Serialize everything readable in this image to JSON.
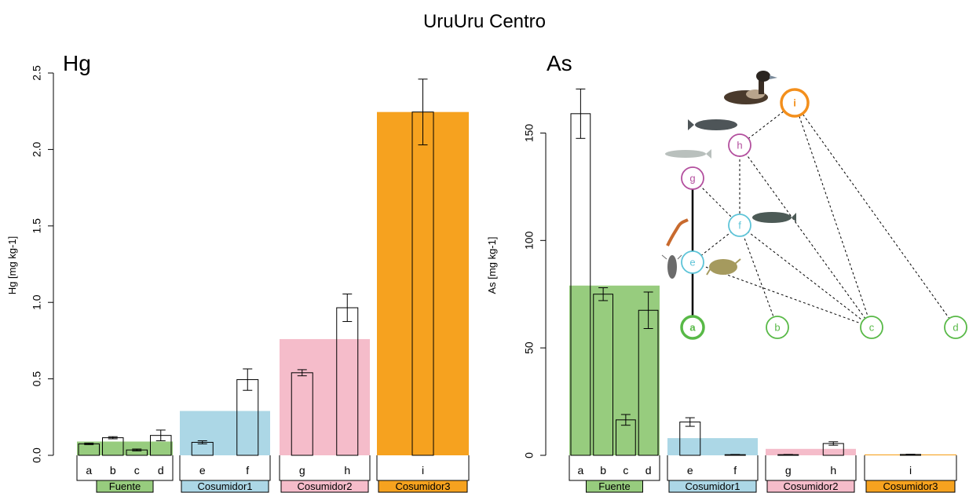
{
  "title": "UruUru Centro",
  "colors": {
    "Fuente": "#97cc7e",
    "Cosumidor1": "#acd7e6",
    "Cosumidor2": "#f5bcca",
    "Cosumidor3": "#f6a21f",
    "a": "#58b947",
    "b": "#58b947",
    "c": "#58b947",
    "d": "#58b947",
    "e": "#5ec4d8",
    "f": "#5ec4d8",
    "g": "#b34f9e",
    "h": "#b34f9e",
    "i": "#f38f1c"
  },
  "chart_data": [
    {
      "type": "bar",
      "panel_label": "Hg",
      "ylabel": "Hg [mg kg-1]",
      "ylim": [
        0,
        2.5
      ],
      "yticks": [
        0.0,
        0.5,
        1.0,
        1.5,
        2.0,
        2.5
      ],
      "tick_labels": [
        "0.0",
        "0.5",
        "1.0",
        "1.5",
        "2.0",
        "2.5"
      ],
      "groups": [
        {
          "name": "Fuente",
          "mean": 0.09,
          "items": [
            {
              "label": "a",
              "value": 0.075,
              "err": 0.005
            },
            {
              "label": "b",
              "value": 0.115,
              "err": 0.007
            },
            {
              "label": "c",
              "value": 0.035,
              "err": 0.006
            },
            {
              "label": "d",
              "value": 0.13,
              "err": 0.035
            }
          ]
        },
        {
          "name": "Cosumidor1",
          "mean": 0.29,
          "items": [
            {
              "label": "e",
              "value": 0.085,
              "err": 0.01
            },
            {
              "label": "f",
              "value": 0.495,
              "err": 0.07
            }
          ]
        },
        {
          "name": "Cosumidor2",
          "mean": 0.76,
          "items": [
            {
              "label": "g",
              "value": 0.54,
              "err": 0.02
            },
            {
              "label": "h",
              "value": 0.965,
              "err": 0.09
            }
          ]
        },
        {
          "name": "Cosumidor3",
          "mean": 2.245,
          "items": [
            {
              "label": "i",
              "value": 2.245,
              "err": 0.215
            }
          ]
        }
      ]
    },
    {
      "type": "bar",
      "panel_label": "As",
      "ylabel": "As [mg kg-1]",
      "ylim": [
        0,
        175
      ],
      "yticks": [
        0,
        50,
        100,
        150
      ],
      "tick_labels": [
        "0",
        "50",
        "100",
        "150"
      ],
      "groups": [
        {
          "name": "Fuente",
          "mean": 79,
          "items": [
            {
              "label": "a",
              "value": 159,
              "err": 11.5
            },
            {
              "label": "b",
              "value": 75,
              "err": 3
            },
            {
              "label": "c",
              "value": 16.5,
              "err": 2.5
            },
            {
              "label": "d",
              "value": 67.5,
              "err": 8.5
            }
          ]
        },
        {
          "name": "Cosumidor1",
          "mean": 8,
          "items": [
            {
              "label": "e",
              "value": 15.5,
              "err": 2
            },
            {
              "label": "f",
              "value": 0.3,
              "err": 0.1
            }
          ]
        },
        {
          "name": "Cosumidor2",
          "mean": 3,
          "items": [
            {
              "label": "g",
              "value": 0.3,
              "err": 0.1
            },
            {
              "label": "h",
              "value": 5.5,
              "err": 0.8
            }
          ]
        },
        {
          "name": "Cosumidor3",
          "mean": 0.4,
          "items": [
            {
              "label": "i",
              "value": 0.4,
              "err": 0.1
            }
          ]
        }
      ]
    }
  ],
  "food_web": {
    "nodes": [
      "a",
      "b",
      "c",
      "d",
      "e",
      "f",
      "g",
      "h",
      "i"
    ],
    "solid_links": [
      [
        "a",
        "e"
      ],
      [
        "e",
        "g"
      ]
    ],
    "dashed_links": [
      [
        "i",
        "h"
      ],
      [
        "i",
        "c"
      ],
      [
        "i",
        "d"
      ],
      [
        "h",
        "f"
      ],
      [
        "h",
        "c"
      ],
      [
        "g",
        "f"
      ],
      [
        "f",
        "e"
      ],
      [
        "f",
        "b"
      ],
      [
        "f",
        "c"
      ],
      [
        "e",
        "c"
      ]
    ],
    "organisms": [
      "duck-photo",
      "killifish-photo",
      "silver-fish-photo",
      "pupfish-photo",
      "worm-photo",
      "insect-larva-photo",
      "amphipod-photo"
    ]
  }
}
